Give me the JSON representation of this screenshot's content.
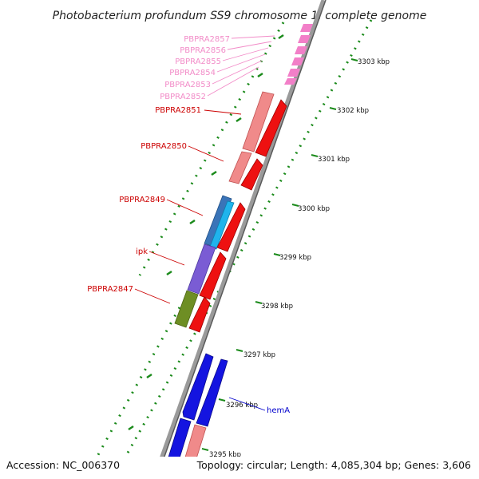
{
  "title": "Photobacterium profundum SS9 chromosome 1, complete genome",
  "accession": "Accession: NC_006370",
  "topology": "Topology: circular; Length: 4,085,304 bp; Genes: 3,606",
  "gene_labels": [
    {
      "name": "PBPRA2857",
      "color": "#f28cc8"
    },
    {
      "name": "PBPRA2856",
      "color": "#f28cc8"
    },
    {
      "name": "PBPRA2855",
      "color": "#f28cc8"
    },
    {
      "name": "PBPRA2854",
      "color": "#f28cc8"
    },
    {
      "name": "PBPRA2853",
      "color": "#f28cc8"
    },
    {
      "name": "PBPRA2852",
      "color": "#f28cc8"
    },
    {
      "name": "PBPRA2851",
      "color": "#cc0000"
    },
    {
      "name": "PBPRA2850",
      "color": "#cc0000"
    },
    {
      "name": "PBPRA2849",
      "color": "#cc0000"
    },
    {
      "name": "ipk",
      "color": "#cc0000"
    },
    {
      "name": "PBPRA2847",
      "color": "#cc0000"
    },
    {
      "name": "hemA",
      "color": "#0000cc"
    }
  ],
  "ruler_ticks": [
    "3303 kbp",
    "3302 kbp",
    "3301 kbp",
    "3300 kbp",
    "3299 kbp",
    "3298 kbp",
    "3297 kbp",
    "3296 kbp",
    "3295 kbp"
  ],
  "colors": {
    "backbone": "#8c8c8c",
    "ticks": "#1a8a1a",
    "gene_red": "#ee1111",
    "gene_salmon": "#f08a8a",
    "gene_pink": "#f27fc8",
    "gene_blue": "#1414e0",
    "gene_steel": "#3a74b8",
    "gene_cyan": "#20b4ec",
    "gene_purple": "#7a5cd4",
    "gene_olive": "#6e8e24"
  }
}
